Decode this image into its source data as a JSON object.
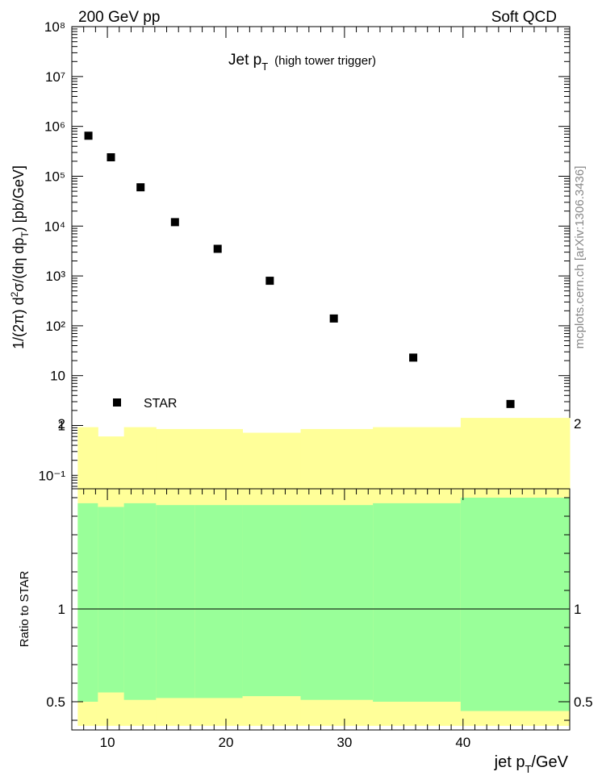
{
  "header": {
    "left": "200 GeV pp",
    "right": "Soft QCD"
  },
  "watermark": "mcplots.cern.ch [arXiv:1306.3436]",
  "chart_data": [
    {
      "type": "scatter",
      "title_main": "Jet p",
      "title_sub": "T",
      "title_note": "(high tower trigger)",
      "ylabel": "1/(2π) d²σ/(dη dp_T) [pb/GeV]",
      "yscale": "log",
      "ylim": [
        0.06,
        100000000
      ],
      "xlim": [
        7,
        49
      ],
      "y_tick_labels": [
        "10⁻¹",
        "1",
        "10",
        "10²",
        "10³",
        "10⁴",
        "10⁵",
        "10⁶",
        "10⁷",
        "10⁸"
      ],
      "legend": {
        "label": "STAR",
        "position": "lower-left"
      },
      "analysis_id": "(STAR_2006_S6870392)",
      "marker_color": "#000000",
      "series": [
        {
          "name": "STAR",
          "x": [
            8.4,
            10.3,
            12.8,
            15.7,
            19.3,
            23.7,
            29.1,
            35.8,
            44.0
          ],
          "y": [
            650000,
            240000,
            60000,
            12000,
            3500,
            800,
            140,
            23,
            2.7
          ]
        }
      ]
    },
    {
      "type": "area",
      "ylabel": "Ratio to STAR",
      "xlabel": "jet p_T/GeV",
      "ylim": [
        0.35,
        2.35
      ],
      "xlim": [
        7,
        49
      ],
      "x_tick_labels": [
        "10",
        "20",
        "30",
        "40"
      ],
      "y_tick_labels": [
        "0.5",
        "1",
        "2"
      ],
      "reference_line": 1,
      "band_colors": {
        "outer": "#ffff99",
        "inner": "#99ff99"
      },
      "bins": [
        {
          "x_low": 7.5,
          "x_high": 9.2,
          "inner_low": 0.5,
          "inner_high": 1.57,
          "outer_low": 0.37,
          "outer_high": 1.98
        },
        {
          "x_low": 9.2,
          "x_high": 11.4,
          "inner_low": 0.55,
          "inner_high": 1.55,
          "outer_low": 0.37,
          "outer_high": 1.93
        },
        {
          "x_low": 11.4,
          "x_high": 14.1,
          "inner_low": 0.51,
          "inner_high": 1.57,
          "outer_low": 0.37,
          "outer_high": 1.98
        },
        {
          "x_low": 14.1,
          "x_high": 17.4,
          "inner_low": 0.52,
          "inner_high": 1.56,
          "outer_low": 0.37,
          "outer_high": 1.97
        },
        {
          "x_low": 17.4,
          "x_high": 21.4,
          "inner_low": 0.52,
          "inner_high": 1.56,
          "outer_low": 0.37,
          "outer_high": 1.97
        },
        {
          "x_low": 21.4,
          "x_high": 26.3,
          "inner_low": 0.53,
          "inner_high": 1.56,
          "outer_low": 0.37,
          "outer_high": 1.95
        },
        {
          "x_low": 26.3,
          "x_high": 32.4,
          "inner_low": 0.51,
          "inner_high": 1.56,
          "outer_low": 0.37,
          "outer_high": 1.97
        },
        {
          "x_low": 32.4,
          "x_high": 39.8,
          "inner_low": 0.5,
          "inner_high": 1.57,
          "outer_low": 0.37,
          "outer_high": 1.98
        },
        {
          "x_low": 39.8,
          "x_high": 49.0,
          "inner_low": 0.45,
          "inner_high": 1.6,
          "outer_low": 0.37,
          "outer_high": 2.03
        }
      ]
    }
  ]
}
